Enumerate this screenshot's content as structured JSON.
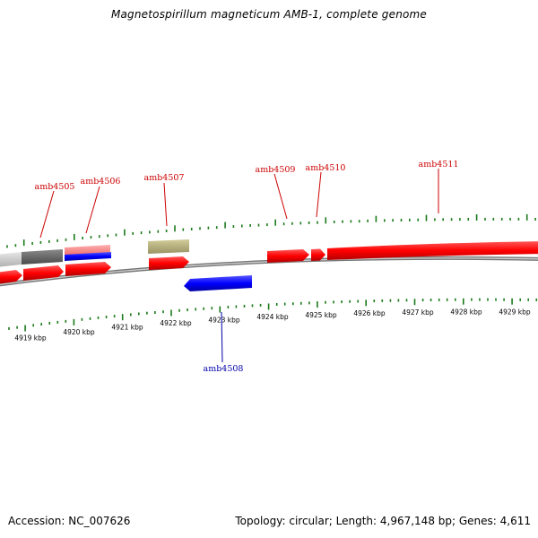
{
  "title": "Magnetospirillum magneticum AMB-1, complete genome",
  "footer": {
    "accession": "Accession: NC_007626",
    "topology": "Topology: circular; Length: 4,967,148 bp; Genes: 4,611"
  },
  "colors": {
    "forward_gene": "#ff0000",
    "reverse_gene": "#0000ff",
    "forward_label": "#cc0000",
    "reverse_label": "#0000aa",
    "tick": "#1a7a1a",
    "backbone": "#888888"
  },
  "kbp_labels": [
    "4919 kbp",
    "4920 kbp",
    "4921 kbp",
    "4922 kbp",
    "4923 kbp",
    "4924 kbp",
    "4925 kbp",
    "4926 kbp",
    "4927 kbp",
    "4928 kbp",
    "4929 kbp"
  ],
  "gene_labels": {
    "amb4505": "amb4505",
    "amb4506": "amb4506",
    "amb4507": "amb4507",
    "amb4508": "amb4508",
    "amb4509": "amb4509",
    "amb4510": "amb4510",
    "amb4511": "amb4511"
  }
}
